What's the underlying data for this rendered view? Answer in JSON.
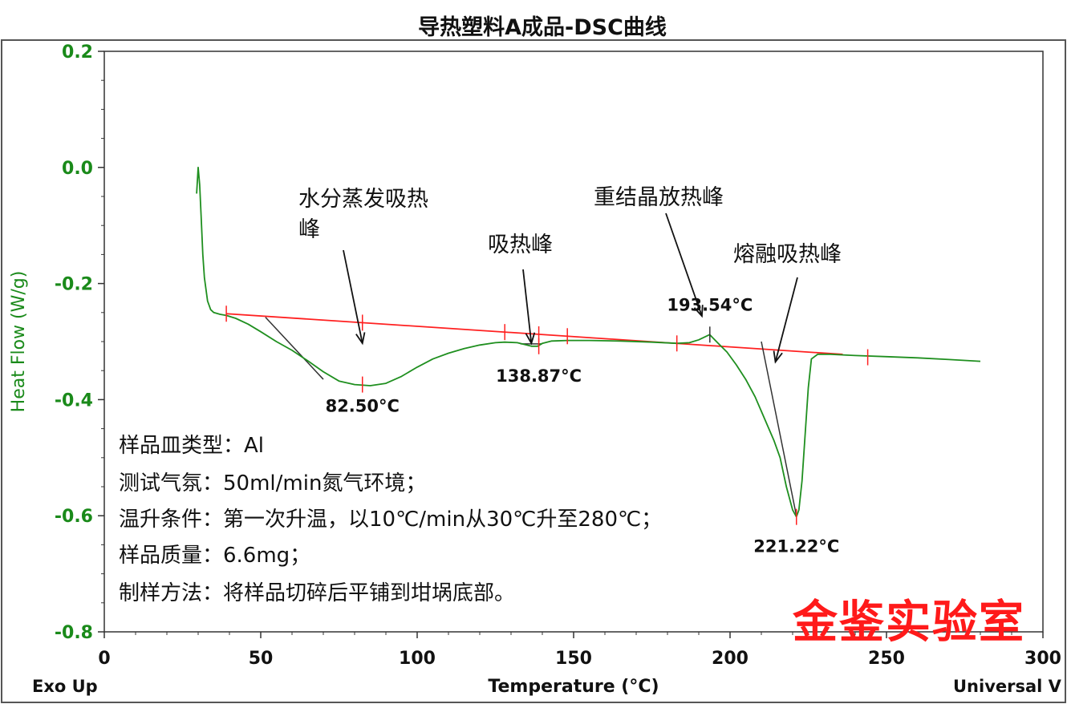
{
  "chart_data": {
    "type": "line",
    "title": "导热塑料A成品-DSC曲线",
    "xlabel": "Temperature (°C)",
    "ylabel": "Heat Flow (W/g)",
    "xlim": [
      0,
      300
    ],
    "ylim": [
      -0.8,
      0.2
    ],
    "x_ticks": [
      "0",
      "50",
      "100",
      "150",
      "200",
      "250",
      "300"
    ],
    "y_ticks": [
      "0.2",
      "0.0",
      "-0.2",
      "-0.4",
      "-0.6",
      "-0.8"
    ],
    "corner_left": "Exo Up",
    "corner_right": "Universal V",
    "colors": {
      "curve": "#1f8f1f",
      "baseline": "#ff2020",
      "axis_text": "#1a8a1a",
      "watermark": "#ff1a1a"
    },
    "series": [
      {
        "x": [
          29.5,
          30.0,
          30.5,
          31.0,
          31.5,
          32.0,
          33.0,
          34.0,
          35.0,
          37.0,
          39.0,
          42.0,
          46.0,
          50.0,
          55.0,
          60.0,
          65.0,
          70.0,
          75.0,
          80.0,
          85.0,
          90.0,
          95.0,
          100.0,
          105.0,
          110.0,
          115.0,
          120.0,
          125.0,
          128.0,
          132.0,
          135.0,
          136.5,
          138.5,
          140.0,
          143.0,
          148.0,
          155.0,
          165.0,
          175.0,
          183.0,
          187.0,
          190.0,
          193.5,
          196.0,
          199.0,
          202.0,
          205.0,
          208.0,
          210.0,
          212.0,
          214.0,
          216.0,
          218.0,
          220.0,
          221.2,
          222.0,
          223.0,
          224.0,
          225.0,
          226.0,
          228.0,
          232.0,
          240.0,
          250.0,
          260.0,
          270.0,
          280.0
        ],
        "y": [
          -0.045,
          0.0,
          -0.03,
          -0.09,
          -0.15,
          -0.19,
          -0.23,
          -0.245,
          -0.25,
          -0.253,
          -0.255,
          -0.26,
          -0.27,
          -0.283,
          -0.3,
          -0.315,
          -0.333,
          -0.352,
          -0.368,
          -0.374,
          -0.376,
          -0.372,
          -0.36,
          -0.344,
          -0.33,
          -0.32,
          -0.312,
          -0.306,
          -0.302,
          -0.301,
          -0.302,
          -0.306,
          -0.308,
          -0.308,
          -0.303,
          -0.299,
          -0.298,
          -0.298,
          -0.299,
          -0.301,
          -0.303,
          -0.302,
          -0.297,
          -0.288,
          -0.302,
          -0.318,
          -0.34,
          -0.365,
          -0.395,
          -0.42,
          -0.445,
          -0.47,
          -0.5,
          -0.55,
          -0.59,
          -0.602,
          -0.59,
          -0.54,
          -0.46,
          -0.38,
          -0.33,
          -0.322,
          -0.322,
          -0.324,
          -0.326,
          -0.328,
          -0.331,
          -0.334
        ]
      }
    ],
    "baseline": {
      "x": [
        39,
        236
      ],
      "y": [
        -0.252,
        -0.322
      ]
    },
    "peaks": [
      {
        "x": 82.5,
        "y": -0.374,
        "label": "82.50°C"
      },
      {
        "x": 138.87,
        "y": -0.308,
        "label": "138.87°C"
      },
      {
        "x": 193.54,
        "y": -0.288,
        "label": "193.54°C"
      },
      {
        "x": 221.22,
        "y": -0.602,
        "label": "221.22°C"
      }
    ],
    "baseline_markers_x": [
      39,
      82.5,
      128,
      138.87,
      148,
      183,
      244
    ],
    "tangents": [
      {
        "x": [
          51.5,
          70
        ],
        "y": [
          -0.258,
          -0.365
        ]
      },
      {
        "x": [
          210,
          221.2
        ],
        "y": [
          -0.3,
          -0.6
        ]
      },
      {
        "x": [
          133,
          140
        ],
        "y": [
          -0.304,
          -0.304
        ]
      }
    ],
    "annotations": [
      {
        "lines": [
          "水分蒸发吸热",
          "峰"
        ],
        "arrow_to": [
          82.5,
          -0.303
        ]
      },
      {
        "lines": [
          "吸热峰"
        ],
        "arrow_to": [
          136.5,
          -0.303
        ]
      },
      {
        "lines": [
          "重结晶放热峰"
        ],
        "arrow_to": [
          191,
          -0.256
        ]
      },
      {
        "lines": [
          "熔融吸热峰"
        ],
        "arrow_to": [
          214.5,
          -0.335
        ]
      }
    ],
    "notes": [
      "样品皿类型：Al",
      "测试气氛：50ml/min氮气环境；",
      "温升条件：第一次升温，以10℃/min从30℃升至280℃；",
      "样品质量：6.6mg；",
      "制样方法：将样品切碎后平铺到坩埚底部。"
    ],
    "watermark": "金鉴实验室"
  }
}
